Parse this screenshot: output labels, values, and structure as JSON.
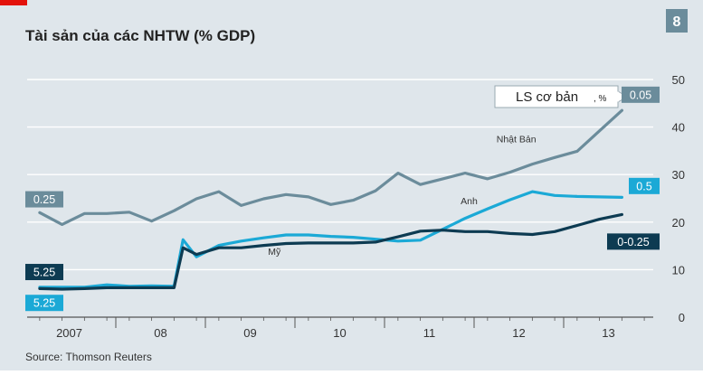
{
  "page_number": "8",
  "colors": {
    "background": "#dfe6eb",
    "red_accent": "#e3120b",
    "grid": "#ffffff",
    "japan": "#6b8c9b",
    "uk": "#1ba9d6",
    "us": "#0d3b52",
    "badge_gray": "#6b8c9b"
  },
  "chart_data": {
    "type": "line",
    "title": "Tài sản của các NHTW (% GDP)",
    "source": "Source: Thomson Reuters",
    "ylim": [
      0,
      50
    ],
    "y_ticks": [
      "0",
      "10",
      "20",
      "30",
      "40",
      "50"
    ],
    "x_tick_labels": [
      {
        "label": "2007",
        "x": 2007.33
      },
      {
        "label": "08",
        "x": 2008.35
      },
      {
        "label": "09",
        "x": 2009.35
      },
      {
        "label": "10",
        "x": 2010.35
      },
      {
        "label": "11",
        "x": 2011.35
      },
      {
        "label": "12",
        "x": 2012.35
      },
      {
        "label": "13",
        "x": 2013.35
      }
    ],
    "xlim": [
      2006.86,
      2013.85
    ],
    "year_boundaries": [
      2007.85,
      2008.85,
      2009.85,
      2010.85,
      2011.85,
      2012.85
    ],
    "series": [
      {
        "name": "Nhật Bản",
        "color": "#6b8c9b",
        "points": [
          [
            2007.0,
            22
          ],
          [
            2007.25,
            19.5
          ],
          [
            2007.5,
            21.8
          ],
          [
            2007.75,
            21.8
          ],
          [
            2008.0,
            22.1
          ],
          [
            2008.25,
            20.2
          ],
          [
            2008.5,
            22.4
          ],
          [
            2008.75,
            24.9
          ],
          [
            2009.0,
            26.4
          ],
          [
            2009.25,
            23.5
          ],
          [
            2009.5,
            24.9
          ],
          [
            2009.75,
            25.8
          ],
          [
            2010.0,
            25.3
          ],
          [
            2010.25,
            23.7
          ],
          [
            2010.5,
            24.6
          ],
          [
            2010.75,
            26.6
          ],
          [
            2011.0,
            30.3
          ],
          [
            2011.25,
            27.9
          ],
          [
            2011.5,
            29.1
          ],
          [
            2011.75,
            30.3
          ],
          [
            2012.0,
            29.1
          ],
          [
            2012.25,
            30.5
          ],
          [
            2012.5,
            32.2
          ],
          [
            2012.75,
            33.6
          ],
          [
            2013.0,
            34.9
          ],
          [
            2013.25,
            39.2
          ],
          [
            2013.5,
            43.5
          ]
        ]
      },
      {
        "name": "Anh",
        "color": "#1ba9d6",
        "points": [
          [
            2007.0,
            6.3
          ],
          [
            2007.25,
            6.3
          ],
          [
            2007.5,
            6.3
          ],
          [
            2007.75,
            6.8
          ],
          [
            2008.0,
            6.5
          ],
          [
            2008.25,
            6.6
          ],
          [
            2008.5,
            6.5
          ],
          [
            2008.6,
            16.3
          ],
          [
            2008.75,
            12.7
          ],
          [
            2009.0,
            15.1
          ],
          [
            2009.25,
            16.0
          ],
          [
            2009.5,
            16.7
          ],
          [
            2009.75,
            17.3
          ],
          [
            2010.0,
            17.3
          ],
          [
            2010.25,
            17.0
          ],
          [
            2010.5,
            16.8
          ],
          [
            2010.75,
            16.4
          ],
          [
            2011.0,
            16.0
          ],
          [
            2011.25,
            16.2
          ],
          [
            2011.5,
            18.5
          ],
          [
            2011.75,
            20.8
          ],
          [
            2012.0,
            22.8
          ],
          [
            2012.25,
            24.7
          ],
          [
            2012.5,
            26.4
          ],
          [
            2012.75,
            25.6
          ],
          [
            2013.0,
            25.4
          ],
          [
            2013.5,
            25.2
          ]
        ]
      },
      {
        "name": "Mỹ",
        "color": "#0d3b52",
        "points": [
          [
            2007.0,
            6.0
          ],
          [
            2007.25,
            5.9
          ],
          [
            2007.5,
            6.0
          ],
          [
            2007.75,
            6.2
          ],
          [
            2008.0,
            6.2
          ],
          [
            2008.25,
            6.2
          ],
          [
            2008.5,
            6.2
          ],
          [
            2008.6,
            14.6
          ],
          [
            2008.75,
            13.2
          ],
          [
            2009.0,
            14.6
          ],
          [
            2009.25,
            14.6
          ],
          [
            2009.5,
            15.1
          ],
          [
            2009.75,
            15.5
          ],
          [
            2010.0,
            15.6
          ],
          [
            2010.25,
            15.6
          ],
          [
            2010.5,
            15.6
          ],
          [
            2010.75,
            15.8
          ],
          [
            2011.0,
            16.9
          ],
          [
            2011.25,
            18.1
          ],
          [
            2011.5,
            18.3
          ],
          [
            2011.75,
            18.0
          ],
          [
            2012.0,
            18.0
          ],
          [
            2012.25,
            17.6
          ],
          [
            2012.5,
            17.4
          ],
          [
            2012.75,
            18.0
          ],
          [
            2013.0,
            19.3
          ],
          [
            2013.25,
            20.6
          ],
          [
            2013.5,
            21.6
          ]
        ]
      }
    ],
    "line_labels": [
      {
        "text": "Nhật Bản",
        "x": 2012.1,
        "y": 36.8
      },
      {
        "text": "Anh",
        "x": 2011.7,
        "y": 23.8
      },
      {
        "text": "Mỹ",
        "x": 2009.55,
        "y": 13.1
      }
    ],
    "rate_legend": {
      "label": "LS cơ bản",
      "unit": ", %"
    },
    "rate_badges": [
      {
        "text": "0.25",
        "series": "Nhật Bản",
        "side": "left",
        "y": 24.8
      },
      {
        "text": "5.25",
        "series": "Mỹ",
        "side": "left",
        "y": 9.5
      },
      {
        "text": "5.25",
        "series": "Anh",
        "side": "left",
        "y": 3.0
      },
      {
        "text": "0.05",
        "series": "Nhật Bản",
        "side": "right",
        "y": 46.8
      },
      {
        "text": "0.5",
        "series": "Anh",
        "side": "right",
        "y": 27.6
      },
      {
        "text": "0-0.25",
        "series": "Mỹ",
        "side": "right",
        "y": 15.9
      }
    ]
  }
}
